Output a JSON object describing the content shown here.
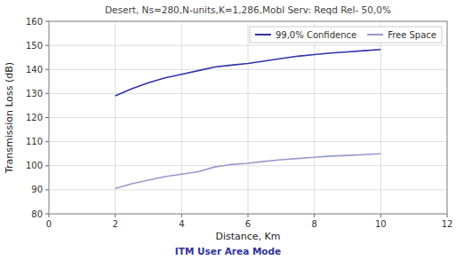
{
  "chart_data": {
    "type": "line",
    "title": "Desert, Ns=280,N-units,K=1,286,Mobl Serv: Reqd Rel- 50,0%",
    "subtitle": "ITM User Area Mode",
    "x_label": "Distance, Km",
    "y_label": "Transmission Loss (dB)",
    "x": [
      2.0,
      2.5,
      3.0,
      3.5,
      4.0,
      4.5,
      5.0,
      5.5,
      6.0,
      6.5,
      7.0,
      7.5,
      8.0,
      8.5,
      9.0,
      9.5,
      10.0
    ],
    "series": [
      {
        "name": "99,0% Confidence",
        "color": "#3333aa",
        "values": [
          129.0,
          132.0,
          134.5,
          136.5,
          138.0,
          139.5,
          141.0,
          141.8,
          142.5,
          143.5,
          144.5,
          145.5,
          146.2,
          146.8,
          147.3,
          147.8,
          148.3
        ]
      },
      {
        "name": "Free Space",
        "color": "#9999cc",
        "values": [
          90.5,
          92.5,
          94.0,
          95.5,
          96.5,
          97.5,
          99.5,
          100.5,
          101.0,
          101.8,
          102.5,
          103.0,
          103.5,
          104.0,
          104.3,
          104.6,
          105.0
        ]
      }
    ],
    "xlim": [
      0,
      12
    ],
    "ylim": [
      80,
      160
    ],
    "xticks": [
      0,
      2,
      4,
      6,
      8,
      10,
      12
    ],
    "yticks": [
      80,
      90,
      100,
      110,
      120,
      130,
      140,
      150,
      160
    ],
    "grid": true,
    "legend": "upper right"
  }
}
